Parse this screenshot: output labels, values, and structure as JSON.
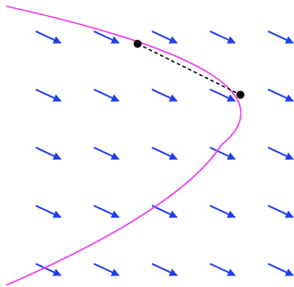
{
  "colors": {
    "background": "#ffffff",
    "vector_arrow": "#1f3cf0",
    "curve": "#f03cf0",
    "point": "#000000",
    "segment": "#000000"
  },
  "vector_field": {
    "rows": 5,
    "columns": 5,
    "direction": "down-right",
    "arrow_style": "filled-head"
  },
  "curve": {
    "shape": "parabola opening left",
    "stroke": "solid"
  },
  "points": [
    {
      "name": "start",
      "filled": true
    },
    {
      "name": "end",
      "filled": true
    }
  ],
  "segment": {
    "from": "start",
    "to": "end",
    "stroke": "dashed"
  }
}
